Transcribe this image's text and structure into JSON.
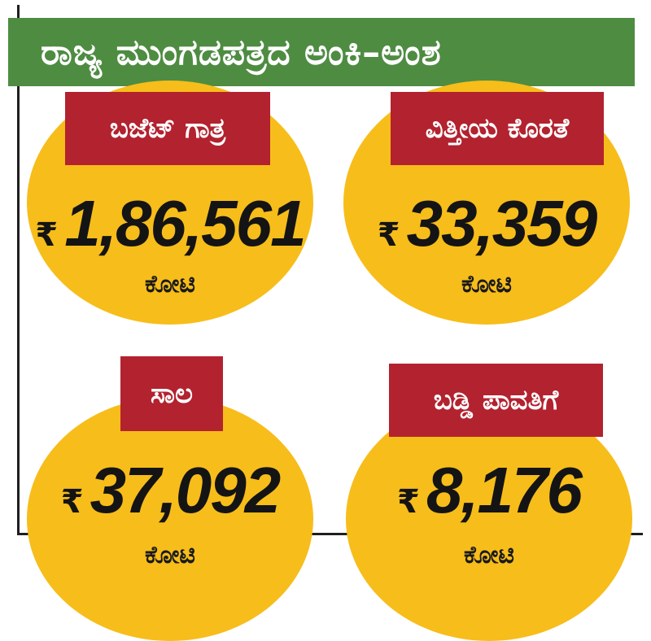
{
  "title": "ರಾಜ್ಯ ಮುಂಗಡಪತ್ರದ ಅಂಕಿ–ಅಂಶ",
  "currency_symbol": "₹",
  "colors": {
    "title_bg": "#4e8c42",
    "label_bg": "#b3222f",
    "circle": "#f7bd1a"
  },
  "cards": [
    {
      "label": "ಬಜೆಟ್ ಗಾತ್ರ",
      "value": "1,86,561",
      "unit": "ಕೋಟಿ"
    },
    {
      "label": "ವಿತ್ತೀಯ ಕೊರತೆ",
      "value": "33,359",
      "unit": "ಕೋಟಿ"
    },
    {
      "label": "ಸಾಲ",
      "value": "37,092",
      "unit": "ಕೋಟಿ"
    },
    {
      "label": "ಬಡ್ಡಿ ಪಾವತಿಗೆ",
      "value": "8,176",
      "unit": "ಕೋಟಿ"
    }
  ]
}
